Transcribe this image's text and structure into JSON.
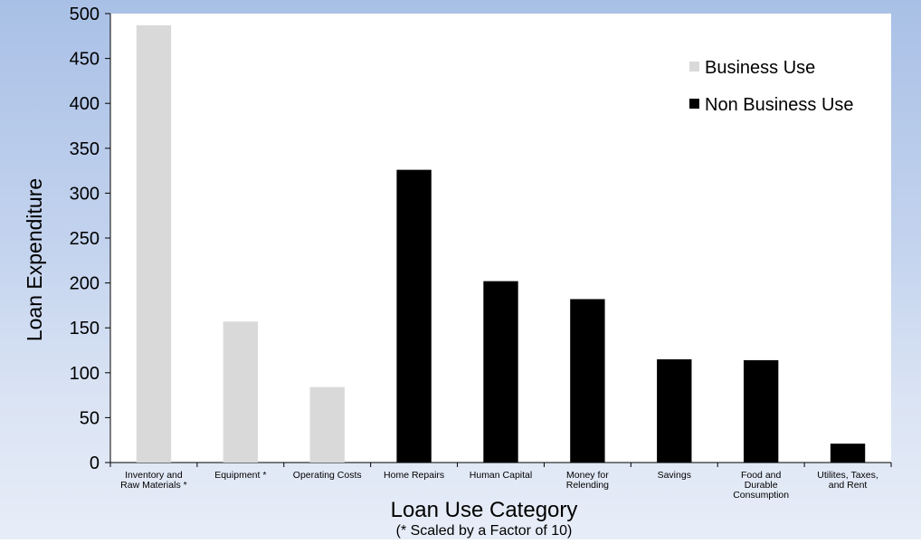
{
  "chart_data": {
    "type": "bar",
    "categories": [
      [
        "Inventory and",
        "Raw Materials *"
      ],
      [
        "Equipment *"
      ],
      [
        "Operating Costs"
      ],
      [
        "Home Repairs"
      ],
      [
        "Human Capital"
      ],
      [
        "Money for",
        "Relending"
      ],
      [
        "Savings"
      ],
      [
        "Food and",
        "Durable",
        "Consumption"
      ],
      [
        "Utilites, Taxes,",
        "and Rent"
      ]
    ],
    "values": [
      487,
      157,
      84,
      326,
      202,
      182,
      115,
      114,
      21
    ],
    "series": [
      {
        "name": "Business Use",
        "color": "#d9d9d9",
        "category_indices": [
          0,
          1,
          2
        ]
      },
      {
        "name": "Non Business Use",
        "color": "#000000",
        "category_indices": [
          3,
          4,
          5,
          6,
          7,
          8
        ]
      }
    ],
    "xlabel": "Loan Use Category",
    "xlabel_note": "(* Scaled by a Factor of 10)",
    "ylabel": "Loan Expenditure",
    "ylim": [
      0,
      500
    ],
    "yticks": [
      0,
      50,
      100,
      150,
      200,
      250,
      300,
      350,
      400,
      450,
      500
    ],
    "grid": false,
    "legend_position": "top-right",
    "colors": {
      "business": "#d9d9d9",
      "non_business": "#000000",
      "background_top": "#a9c0e6",
      "background_bottom": "#e7edf8",
      "plot_area": "#ffffff"
    }
  }
}
